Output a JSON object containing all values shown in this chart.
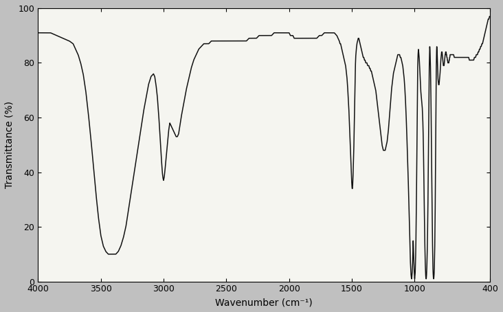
{
  "xlabel": "Wavenumber (cm⁻¹)",
  "ylabel": "Transmittance (%)",
  "xlim": [
    4000,
    400
  ],
  "ylim": [
    0,
    100
  ],
  "xticks": [
    4000,
    3500,
    3000,
    2500,
    2000,
    1500,
    1000,
    400
  ],
  "yticks": [
    0,
    20,
    40,
    60,
    80,
    100
  ],
  "fig_bg": "#c0c0c0",
  "plot_bg": "#f5f5f0",
  "line_color": "#111111",
  "line_width": 1.1,
  "spectrum_points": [
    [
      4000,
      91
    ],
    [
      3950,
      91
    ],
    [
      3900,
      91
    ],
    [
      3850,
      90
    ],
    [
      3800,
      89
    ],
    [
      3750,
      88
    ],
    [
      3720,
      87
    ],
    [
      3700,
      85
    ],
    [
      3680,
      83
    ],
    [
      3660,
      80
    ],
    [
      3640,
      76
    ],
    [
      3620,
      70
    ],
    [
      3600,
      62
    ],
    [
      3580,
      53
    ],
    [
      3560,
      43
    ],
    [
      3540,
      33
    ],
    [
      3520,
      24
    ],
    [
      3500,
      17
    ],
    [
      3480,
      13
    ],
    [
      3460,
      11
    ],
    [
      3440,
      10
    ],
    [
      3420,
      10
    ],
    [
      3400,
      10
    ],
    [
      3380,
      10
    ],
    [
      3360,
      11
    ],
    [
      3340,
      13
    ],
    [
      3320,
      16
    ],
    [
      3300,
      20
    ],
    [
      3280,
      26
    ],
    [
      3260,
      32
    ],
    [
      3240,
      38
    ],
    [
      3220,
      44
    ],
    [
      3200,
      50
    ],
    [
      3180,
      56
    ],
    [
      3160,
      62
    ],
    [
      3140,
      67
    ],
    [
      3120,
      72
    ],
    [
      3100,
      75
    ],
    [
      3080,
      76
    ],
    [
      3070,
      75
    ],
    [
      3060,
      72
    ],
    [
      3050,
      68
    ],
    [
      3040,
      62
    ],
    [
      3030,
      55
    ],
    [
      3020,
      47
    ],
    [
      3010,
      40
    ],
    [
      3005,
      38
    ],
    [
      3000,
      37
    ],
    [
      2995,
      38
    ],
    [
      2990,
      40
    ],
    [
      2980,
      45
    ],
    [
      2970,
      50
    ],
    [
      2960,
      55
    ],
    [
      2950,
      58
    ],
    [
      2940,
      57
    ],
    [
      2930,
      56
    ],
    [
      2920,
      55
    ],
    [
      2910,
      54
    ],
    [
      2900,
      53
    ],
    [
      2890,
      53
    ],
    [
      2880,
      54
    ],
    [
      2870,
      57
    ],
    [
      2860,
      60
    ],
    [
      2840,
      65
    ],
    [
      2820,
      70
    ],
    [
      2800,
      74
    ],
    [
      2780,
      78
    ],
    [
      2760,
      81
    ],
    [
      2740,
      83
    ],
    [
      2720,
      85
    ],
    [
      2700,
      86
    ],
    [
      2680,
      87
    ],
    [
      2660,
      87
    ],
    [
      2640,
      87
    ],
    [
      2620,
      88
    ],
    [
      2600,
      88
    ],
    [
      2580,
      88
    ],
    [
      2560,
      88
    ],
    [
      2540,
      88
    ],
    [
      2520,
      88
    ],
    [
      2500,
      88
    ],
    [
      2480,
      88
    ],
    [
      2460,
      88
    ],
    [
      2440,
      88
    ],
    [
      2420,
      88
    ],
    [
      2400,
      88
    ],
    [
      2380,
      88
    ],
    [
      2360,
      88
    ],
    [
      2340,
      88
    ],
    [
      2320,
      89
    ],
    [
      2300,
      89
    ],
    [
      2280,
      89
    ],
    [
      2260,
      89
    ],
    [
      2240,
      90
    ],
    [
      2220,
      90
    ],
    [
      2200,
      90
    ],
    [
      2180,
      90
    ],
    [
      2160,
      90
    ],
    [
      2140,
      90
    ],
    [
      2120,
      91
    ],
    [
      2100,
      91
    ],
    [
      2080,
      91
    ],
    [
      2060,
      91
    ],
    [
      2040,
      91
    ],
    [
      2020,
      91
    ],
    [
      2000,
      91
    ],
    [
      1990,
      90
    ],
    [
      1980,
      90
    ],
    [
      1970,
      90
    ],
    [
      1960,
      89
    ],
    [
      1950,
      89
    ],
    [
      1940,
      89
    ],
    [
      1930,
      89
    ],
    [
      1920,
      89
    ],
    [
      1910,
      89
    ],
    [
      1900,
      89
    ],
    [
      1880,
      89
    ],
    [
      1860,
      89
    ],
    [
      1840,
      89
    ],
    [
      1820,
      89
    ],
    [
      1800,
      89
    ],
    [
      1780,
      89
    ],
    [
      1760,
      90
    ],
    [
      1740,
      90
    ],
    [
      1720,
      91
    ],
    [
      1700,
      91
    ],
    [
      1680,
      91
    ],
    [
      1660,
      91
    ],
    [
      1640,
      91
    ],
    [
      1620,
      90
    ],
    [
      1610,
      89
    ],
    [
      1600,
      88
    ],
    [
      1595,
      87
    ],
    [
      1590,
      87
    ],
    [
      1585,
      86
    ],
    [
      1580,
      85
    ],
    [
      1575,
      84
    ],
    [
      1570,
      83
    ],
    [
      1565,
      82
    ],
    [
      1560,
      81
    ],
    [
      1555,
      80
    ],
    [
      1550,
      79
    ],
    [
      1545,
      77
    ],
    [
      1540,
      75
    ],
    [
      1535,
      72
    ],
    [
      1530,
      68
    ],
    [
      1525,
      64
    ],
    [
      1520,
      58
    ],
    [
      1515,
      52
    ],
    [
      1510,
      46
    ],
    [
      1505,
      40
    ],
    [
      1500,
      35
    ],
    [
      1498,
      34
    ],
    [
      1496,
      34
    ],
    [
      1494,
      35
    ],
    [
      1492,
      37
    ],
    [
      1490,
      40
    ],
    [
      1488,
      43
    ],
    [
      1486,
      46
    ],
    [
      1484,
      50
    ],
    [
      1482,
      55
    ],
    [
      1480,
      60
    ],
    [
      1478,
      65
    ],
    [
      1476,
      70
    ],
    [
      1474,
      75
    ],
    [
      1472,
      79
    ],
    [
      1470,
      82
    ],
    [
      1465,
      85
    ],
    [
      1460,
      87
    ],
    [
      1455,
      88
    ],
    [
      1450,
      89
    ],
    [
      1445,
      89
    ],
    [
      1440,
      88
    ],
    [
      1435,
      87
    ],
    [
      1430,
      86
    ],
    [
      1425,
      85
    ],
    [
      1420,
      84
    ],
    [
      1415,
      83
    ],
    [
      1410,
      82
    ],
    [
      1405,
      82
    ],
    [
      1400,
      81
    ],
    [
      1395,
      81
    ],
    [
      1390,
      80
    ],
    [
      1385,
      80
    ],
    [
      1380,
      80
    ],
    [
      1375,
      79
    ],
    [
      1370,
      79
    ],
    [
      1365,
      79
    ],
    [
      1360,
      78
    ],
    [
      1355,
      78
    ],
    [
      1350,
      77
    ],
    [
      1345,
      77
    ],
    [
      1340,
      76
    ],
    [
      1335,
      75
    ],
    [
      1330,
      74
    ],
    [
      1325,
      73
    ],
    [
      1320,
      72
    ],
    [
      1315,
      71
    ],
    [
      1310,
      70
    ],
    [
      1305,
      68
    ],
    [
      1300,
      66
    ],
    [
      1295,
      64
    ],
    [
      1290,
      62
    ],
    [
      1285,
      60
    ],
    [
      1280,
      58
    ],
    [
      1275,
      56
    ],
    [
      1270,
      54
    ],
    [
      1265,
      52
    ],
    [
      1260,
      50
    ],
    [
      1255,
      49
    ],
    [
      1250,
      48
    ],
    [
      1245,
      48
    ],
    [
      1240,
      48
    ],
    [
      1235,
      48
    ],
    [
      1230,
      49
    ],
    [
      1225,
      50
    ],
    [
      1220,
      51
    ],
    [
      1215,
      53
    ],
    [
      1210,
      55
    ],
    [
      1205,
      58
    ],
    [
      1200,
      61
    ],
    [
      1195,
      64
    ],
    [
      1190,
      67
    ],
    [
      1185,
      70
    ],
    [
      1180,
      72
    ],
    [
      1175,
      74
    ],
    [
      1170,
      76
    ],
    [
      1165,
      77
    ],
    [
      1160,
      78
    ],
    [
      1155,
      79
    ],
    [
      1150,
      80
    ],
    [
      1145,
      81
    ],
    [
      1140,
      82
    ],
    [
      1135,
      83
    ],
    [
      1130,
      83
    ],
    [
      1125,
      83
    ],
    [
      1120,
      83
    ],
    [
      1115,
      82
    ],
    [
      1110,
      82
    ],
    [
      1105,
      81
    ],
    [
      1100,
      80
    ],
    [
      1095,
      79
    ],
    [
      1090,
      77
    ],
    [
      1085,
      75
    ],
    [
      1080,
      72
    ],
    [
      1075,
      68
    ],
    [
      1070,
      63
    ],
    [
      1065,
      57
    ],
    [
      1060,
      50
    ],
    [
      1055,
      43
    ],
    [
      1050,
      35
    ],
    [
      1045,
      27
    ],
    [
      1042,
      22
    ],
    [
      1040,
      18
    ],
    [
      1038,
      14
    ],
    [
      1036,
      10
    ],
    [
      1034,
      7
    ],
    [
      1032,
      5
    ],
    [
      1030,
      3
    ],
    [
      1028,
      2
    ],
    [
      1026,
      1
    ],
    [
      1024,
      1
    ],
    [
      1022,
      2
    ],
    [
      1020,
      3
    ],
    [
      1018,
      5
    ],
    [
      1016,
      8
    ],
    [
      1014,
      11
    ],
    [
      1012,
      15
    ],
    [
      1010,
      12
    ],
    [
      1008,
      9
    ],
    [
      1006,
      6
    ],
    [
      1004,
      4
    ],
    [
      1002,
      2
    ],
    [
      1000,
      1
    ],
    [
      998,
      2
    ],
    [
      996,
      3
    ],
    [
      994,
      6
    ],
    [
      992,
      10
    ],
    [
      990,
      15
    ],
    [
      988,
      22
    ],
    [
      986,
      30
    ],
    [
      984,
      40
    ],
    [
      982,
      52
    ],
    [
      980,
      63
    ],
    [
      978,
      72
    ],
    [
      976,
      78
    ],
    [
      974,
      82
    ],
    [
      972,
      84
    ],
    [
      970,
      85
    ],
    [
      968,
      84
    ],
    [
      966,
      83
    ],
    [
      964,
      82
    ],
    [
      962,
      80
    ],
    [
      960,
      78
    ],
    [
      958,
      76
    ],
    [
      956,
      74
    ],
    [
      954,
      72
    ],
    [
      952,
      70
    ],
    [
      950,
      69
    ],
    [
      948,
      68
    ],
    [
      946,
      67
    ],
    [
      944,
      66
    ],
    [
      942,
      65
    ],
    [
      940,
      64
    ],
    [
      938,
      62
    ],
    [
      936,
      60
    ],
    [
      934,
      57
    ],
    [
      932,
      53
    ],
    [
      930,
      48
    ],
    [
      928,
      42
    ],
    [
      926,
      36
    ],
    [
      924,
      29
    ],
    [
      922,
      22
    ],
    [
      920,
      16
    ],
    [
      918,
      11
    ],
    [
      916,
      7
    ],
    [
      914,
      4
    ],
    [
      912,
      2
    ],
    [
      910,
      1
    ],
    [
      908,
      1
    ],
    [
      906,
      2
    ],
    [
      904,
      4
    ],
    [
      902,
      7
    ],
    [
      900,
      11
    ],
    [
      898,
      16
    ],
    [
      896,
      22
    ],
    [
      894,
      30
    ],
    [
      892,
      40
    ],
    [
      890,
      50
    ],
    [
      888,
      60
    ],
    [
      886,
      70
    ],
    [
      884,
      78
    ],
    [
      882,
      83
    ],
    [
      880,
      86
    ],
    [
      878,
      85
    ],
    [
      876,
      82
    ],
    [
      874,
      78
    ],
    [
      872,
      72
    ],
    [
      870,
      65
    ],
    [
      868,
      57
    ],
    [
      866,
      48
    ],
    [
      864,
      39
    ],
    [
      862,
      30
    ],
    [
      860,
      22
    ],
    [
      858,
      14
    ],
    [
      856,
      8
    ],
    [
      854,
      4
    ],
    [
      852,
      2
    ],
    [
      850,
      1
    ],
    [
      848,
      1
    ],
    [
      846,
      2
    ],
    [
      844,
      4
    ],
    [
      842,
      8
    ],
    [
      840,
      13
    ],
    [
      838,
      20
    ],
    [
      836,
      30
    ],
    [
      834,
      42
    ],
    [
      832,
      55
    ],
    [
      830,
      68
    ],
    [
      828,
      78
    ],
    [
      826,
      84
    ],
    [
      824,
      86
    ],
    [
      822,
      85
    ],
    [
      820,
      82
    ],
    [
      818,
      79
    ],
    [
      816,
      76
    ],
    [
      814,
      74
    ],
    [
      812,
      73
    ],
    [
      810,
      72
    ],
    [
      808,
      72
    ],
    [
      806,
      72
    ],
    [
      804,
      73
    ],
    [
      802,
      74
    ],
    [
      800,
      75
    ],
    [
      798,
      76
    ],
    [
      796,
      78
    ],
    [
      794,
      79
    ],
    [
      792,
      81
    ],
    [
      790,
      82
    ],
    [
      788,
      83
    ],
    [
      786,
      84
    ],
    [
      784,
      84
    ],
    [
      782,
      84
    ],
    [
      780,
      83
    ],
    [
      778,
      82
    ],
    [
      776,
      81
    ],
    [
      774,
      80
    ],
    [
      772,
      79
    ],
    [
      770,
      79
    ],
    [
      768,
      79
    ],
    [
      766,
      79
    ],
    [
      764,
      80
    ],
    [
      762,
      81
    ],
    [
      760,
      82
    ],
    [
      758,
      83
    ],
    [
      756,
      83
    ],
    [
      754,
      84
    ],
    [
      752,
      84
    ],
    [
      750,
      84
    ],
    [
      748,
      83
    ],
    [
      746,
      83
    ],
    [
      744,
      82
    ],
    [
      742,
      82
    ],
    [
      740,
      81
    ],
    [
      738,
      81
    ],
    [
      736,
      80
    ],
    [
      734,
      80
    ],
    [
      732,
      80
    ],
    [
      730,
      80
    ],
    [
      728,
      80
    ],
    [
      726,
      81
    ],
    [
      724,
      81
    ],
    [
      722,
      82
    ],
    [
      720,
      82
    ],
    [
      718,
      83
    ],
    [
      716,
      83
    ],
    [
      714,
      83
    ],
    [
      712,
      83
    ],
    [
      710,
      83
    ],
    [
      708,
      83
    ],
    [
      706,
      83
    ],
    [
      704,
      83
    ],
    [
      702,
      83
    ],
    [
      700,
      83
    ],
    [
      695,
      83
    ],
    [
      690,
      83
    ],
    [
      685,
      82
    ],
    [
      680,
      82
    ],
    [
      675,
      82
    ],
    [
      670,
      82
    ],
    [
      665,
      82
    ],
    [
      660,
      82
    ],
    [
      655,
      82
    ],
    [
      650,
      82
    ],
    [
      645,
      82
    ],
    [
      640,
      82
    ],
    [
      635,
      82
    ],
    [
      630,
      82
    ],
    [
      625,
      82
    ],
    [
      620,
      82
    ],
    [
      615,
      82
    ],
    [
      610,
      82
    ],
    [
      605,
      82
    ],
    [
      600,
      82
    ],
    [
      595,
      82
    ],
    [
      590,
      82
    ],
    [
      585,
      82
    ],
    [
      580,
      82
    ],
    [
      575,
      82
    ],
    [
      570,
      82
    ],
    [
      565,
      81
    ],
    [
      560,
      81
    ],
    [
      555,
      81
    ],
    [
      550,
      81
    ],
    [
      545,
      81
    ],
    [
      540,
      81
    ],
    [
      535,
      81
    ],
    [
      530,
      81
    ],
    [
      525,
      82
    ],
    [
      520,
      82
    ],
    [
      515,
      82
    ],
    [
      510,
      83
    ],
    [
      505,
      83
    ],
    [
      500,
      83
    ],
    [
      495,
      84
    ],
    [
      490,
      84
    ],
    [
      485,
      85
    ],
    [
      480,
      85
    ],
    [
      475,
      86
    ],
    [
      470,
      86
    ],
    [
      465,
      87
    ],
    [
      460,
      87
    ],
    [
      455,
      88
    ],
    [
      450,
      89
    ],
    [
      445,
      90
    ],
    [
      440,
      91
    ],
    [
      435,
      92
    ],
    [
      430,
      93
    ],
    [
      425,
      94
    ],
    [
      420,
      95
    ],
    [
      415,
      96
    ],
    [
      410,
      96
    ],
    [
      405,
      97
    ],
    [
      400,
      97
    ]
  ]
}
